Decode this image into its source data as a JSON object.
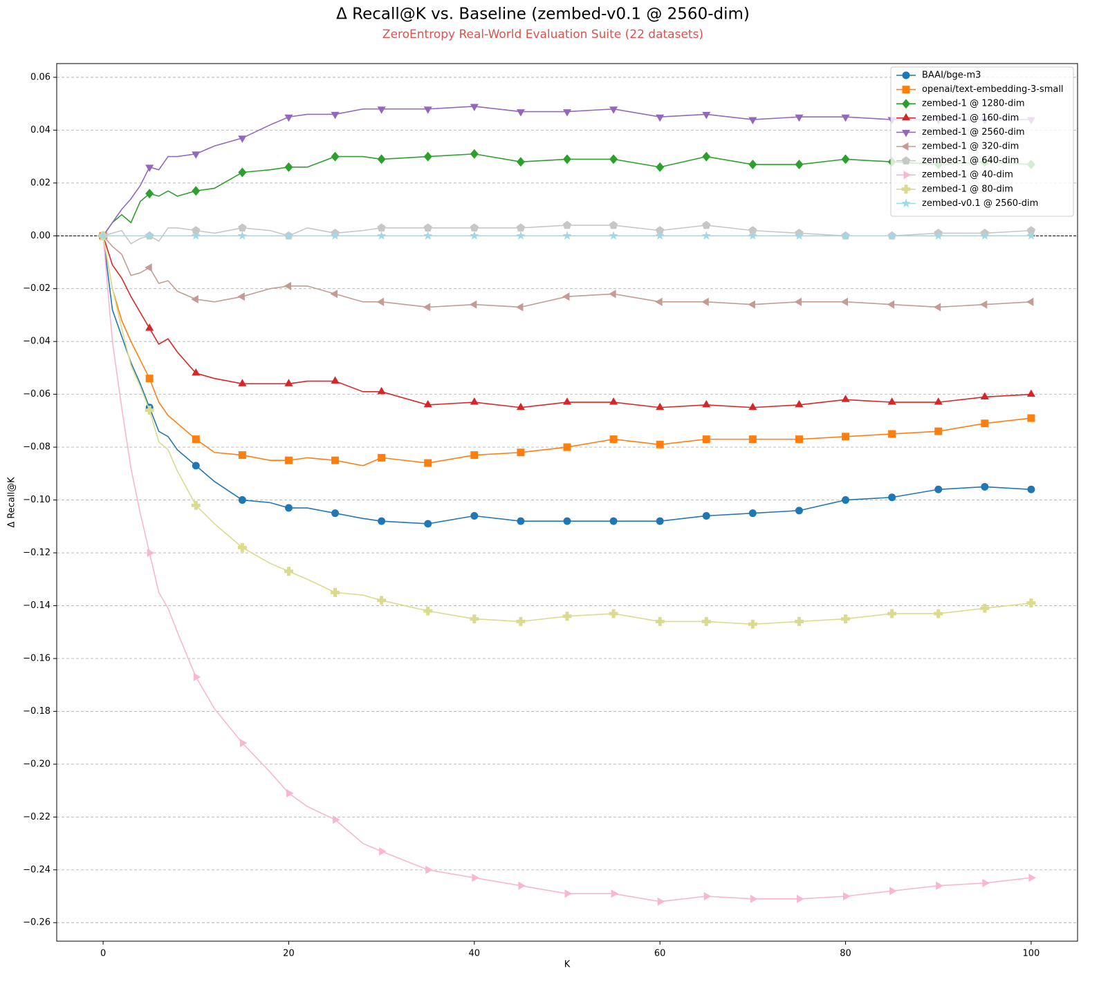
{
  "chart_data": {
    "type": "line",
    "title": "Δ Recall@K vs. Baseline (zembed-v0.1 @ 2560-dim)",
    "subtitle": "ZeroEntropy Real-World Evaluation Suite (22 datasets)",
    "x_label": "K",
    "y_label": "Δ Recall@K",
    "xlim": [
      -5,
      105
    ],
    "ylim": [
      -0.267,
      0.0652
    ],
    "xticks": [
      0,
      20,
      40,
      60,
      80,
      100
    ],
    "yticks": [
      {
        "value": -0.26,
        "label": "−0.26"
      },
      {
        "value": -0.24,
        "label": "−0.24"
      },
      {
        "value": -0.22,
        "label": "−0.22"
      },
      {
        "value": -0.2,
        "label": "−0.20"
      },
      {
        "value": -0.18,
        "label": "−0.18"
      },
      {
        "value": -0.16,
        "label": "−0.16"
      },
      {
        "value": -0.14,
        "label": "−0.14"
      },
      {
        "value": -0.12,
        "label": "−0.12"
      },
      {
        "value": -0.1,
        "label": "−0.10"
      },
      {
        "value": -0.08,
        "label": "−0.08"
      },
      {
        "value": -0.06,
        "label": "−0.06"
      },
      {
        "value": -0.04,
        "label": "−0.04"
      },
      {
        "value": -0.02,
        "label": "−0.02"
      },
      {
        "value": 0,
        "label": "0.00"
      },
      {
        "value": 0.02,
        "label": "0.02"
      },
      {
        "value": 0.04,
        "label": "0.04"
      },
      {
        "value": 0.06,
        "label": "0.06"
      }
    ],
    "grid": true,
    "hline": 0,
    "markevery": 5,
    "legend": "upper right",
    "x": [
      0,
      1,
      2,
      3,
      4,
      5,
      6,
      7,
      8,
      10,
      12,
      15,
      18,
      20,
      22,
      25,
      28,
      30,
      35,
      40,
      45,
      50,
      55,
      60,
      65,
      70,
      75,
      80,
      85,
      90,
      95,
      100
    ],
    "series": [
      {
        "name": "BAAI/bge-m3",
        "color": "#1f77b4",
        "marker": "circle",
        "values": [
          0,
          -0.028,
          -0.038,
          -0.048,
          -0.056,
          -0.065,
          -0.074,
          -0.076,
          -0.081,
          -0.087,
          -0.093,
          -0.1,
          -0.101,
          -0.103,
          -0.103,
          -0.105,
          -0.107,
          -0.108,
          -0.109,
          -0.106,
          -0.108,
          -0.108,
          -0.108,
          -0.108,
          -0.106,
          -0.105,
          -0.104,
          -0.1,
          -0.099,
          -0.096,
          -0.095,
          -0.096
        ]
      },
      {
        "name": "openai/text-embedding-3-small",
        "color": "#ff7f0e",
        "marker": "square",
        "values": [
          0,
          -0.02,
          -0.032,
          -0.04,
          -0.047,
          -0.054,
          -0.063,
          -0.068,
          -0.071,
          -0.077,
          -0.082,
          -0.083,
          -0.085,
          -0.085,
          -0.084,
          -0.085,
          -0.087,
          -0.084,
          -0.086,
          -0.083,
          -0.082,
          -0.08,
          -0.077,
          -0.079,
          -0.077,
          -0.077,
          -0.077,
          -0.076,
          -0.075,
          -0.074,
          -0.071,
          -0.069
        ]
      },
      {
        "name": "zembed-1 @ 1280-dim",
        "color": "#2ca02c",
        "marker": "diamond",
        "values": [
          0,
          0.005,
          0.008,
          0.005,
          0.013,
          0.016,
          0.015,
          0.017,
          0.015,
          0.017,
          0.018,
          0.024,
          0.025,
          0.026,
          0.026,
          0.03,
          0.03,
          0.029,
          0.03,
          0.031,
          0.028,
          0.029,
          0.029,
          0.026,
          0.03,
          0.027,
          0.027,
          0.029,
          0.028,
          0.027,
          0.028,
          0.027
        ]
      },
      {
        "name": "zembed-1 @ 160-dim",
        "color": "#d62728",
        "marker": "triangle-up",
        "values": [
          0,
          -0.011,
          -0.016,
          -0.023,
          -0.029,
          -0.035,
          -0.041,
          -0.039,
          -0.044,
          -0.052,
          -0.054,
          -0.056,
          -0.056,
          -0.056,
          -0.055,
          -0.055,
          -0.059,
          -0.059,
          -0.064,
          -0.063,
          -0.065,
          -0.063,
          -0.063,
          -0.065,
          -0.064,
          -0.065,
          -0.064,
          -0.062,
          -0.063,
          -0.063,
          -0.061,
          -0.06
        ]
      },
      {
        "name": "zembed-1 @ 2560-dim",
        "color": "#9467bd",
        "marker": "triangle-down",
        "values": [
          0,
          0.005,
          0.01,
          0.014,
          0.019,
          0.026,
          0.025,
          0.03,
          0.03,
          0.031,
          0.034,
          0.037,
          0.042,
          0.045,
          0.046,
          0.046,
          0.048,
          0.048,
          0.048,
          0.049,
          0.047,
          0.047,
          0.048,
          0.045,
          0.046,
          0.044,
          0.045,
          0.045,
          0.044,
          0.044,
          0.044,
          0.044
        ]
      },
      {
        "name": "zembed-1 @ 320-dim",
        "color": "#c49c94",
        "marker": "triangle-left",
        "values": [
          0,
          -0.004,
          -0.007,
          -0.015,
          -0.014,
          -0.012,
          -0.018,
          -0.017,
          -0.021,
          -0.024,
          -0.025,
          -0.023,
          -0.02,
          -0.019,
          -0.019,
          -0.022,
          -0.025,
          -0.025,
          -0.027,
          -0.026,
          -0.027,
          -0.023,
          -0.022,
          -0.025,
          -0.025,
          -0.026,
          -0.025,
          -0.025,
          -0.026,
          -0.027,
          -0.026,
          -0.025
        ]
      },
      {
        "name": "zembed-1 @ 640-dim",
        "color": "#c7c7c7",
        "marker": "pentagon",
        "values": [
          0,
          0.001,
          0.002,
          -0.003,
          -0.001,
          0,
          -0.002,
          0.003,
          0.003,
          0.002,
          0.001,
          0.003,
          0.002,
          0,
          0.003,
          0.001,
          0.002,
          0.003,
          0.003,
          0.003,
          0.003,
          0.004,
          0.004,
          0.002,
          0.004,
          0.002,
          0.001,
          0,
          0,
          0.001,
          0.001,
          0.002
        ]
      },
      {
        "name": "zembed-1 @ 40-dim",
        "color": "#f7b6d2",
        "marker": "triangle-right",
        "values": [
          0,
          -0.04,
          -0.065,
          -0.088,
          -0.105,
          -0.12,
          -0.135,
          -0.141,
          -0.15,
          -0.167,
          -0.179,
          -0.192,
          -0.203,
          -0.211,
          -0.216,
          -0.221,
          -0.23,
          -0.233,
          -0.24,
          -0.243,
          -0.246,
          -0.249,
          -0.249,
          -0.252,
          -0.25,
          -0.251,
          -0.251,
          -0.25,
          -0.248,
          -0.246,
          -0.245,
          -0.243
        ]
      },
      {
        "name": "zembed-1 @ 80-dim",
        "color": "#dbdb8d",
        "marker": "plus",
        "values": [
          0,
          -0.02,
          -0.035,
          -0.049,
          -0.057,
          -0.066,
          -0.078,
          -0.081,
          -0.089,
          -0.102,
          -0.109,
          -0.118,
          -0.124,
          -0.127,
          -0.13,
          -0.135,
          -0.136,
          -0.138,
          -0.142,
          -0.145,
          -0.146,
          -0.144,
          -0.143,
          -0.146,
          -0.146,
          -0.147,
          -0.146,
          -0.145,
          -0.143,
          -0.143,
          -0.141,
          -0.139
        ]
      },
      {
        "name": "zembed-v0.1 @ 2560-dim",
        "color": "#9edae5",
        "marker": "star",
        "values": [
          0,
          0,
          0,
          0,
          0,
          0,
          0,
          0,
          0,
          0,
          0,
          0,
          0,
          0,
          0,
          0,
          0,
          0,
          0,
          0,
          0,
          0,
          0,
          0,
          0,
          0,
          0,
          0,
          0,
          0,
          0,
          0
        ]
      }
    ]
  }
}
